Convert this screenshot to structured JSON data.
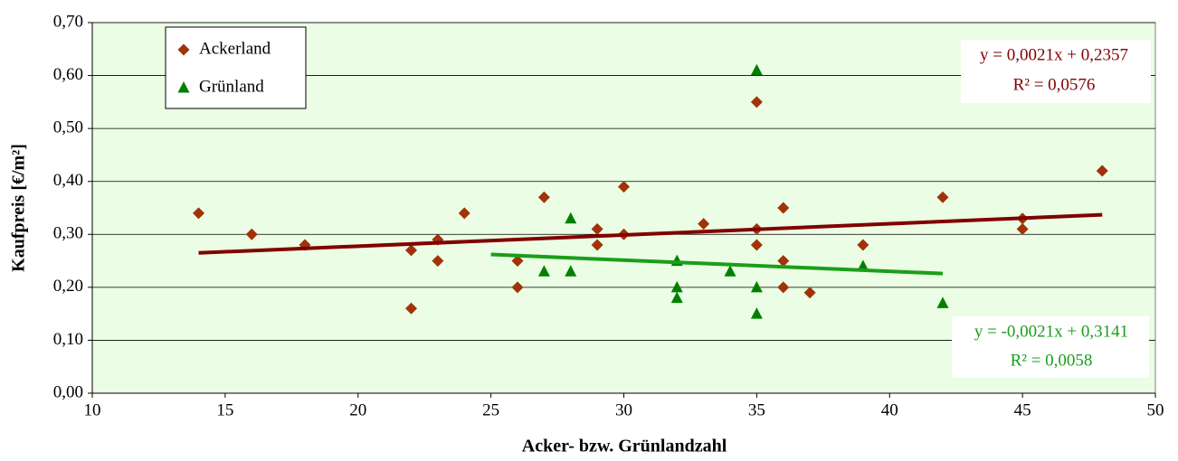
{
  "chart_data": {
    "type": "scatter",
    "x_label": "Acker- bzw. Grünlandzahl",
    "y_label": "Kaufpreis [€/m²]",
    "xlim": [
      10,
      50
    ],
    "xticks": [
      10,
      15,
      20,
      25,
      30,
      35,
      40,
      45,
      50
    ],
    "ylim": [
      0,
      0.7
    ],
    "yticks": [
      {
        "value": 0,
        "label": "0,00"
      },
      {
        "value": 0.1,
        "label": "0,10"
      },
      {
        "value": 0.2,
        "label": "0,20"
      },
      {
        "value": 0.3,
        "label": "0,30"
      },
      {
        "value": 0.4,
        "label": "0,40"
      },
      {
        "value": 0.5,
        "label": "0,50"
      },
      {
        "value": 0.6,
        "label": "0,60"
      },
      {
        "value": 0.7,
        "label": "0,70"
      }
    ],
    "grid": true,
    "background": "#ebfde4",
    "legend": "upper left",
    "series": [
      {
        "name": "Ackerland",
        "color": "#a0330a",
        "marker": "diamond",
        "x": [
          14,
          16,
          18,
          22,
          22,
          23,
          23,
          24,
          26,
          26,
          27,
          29,
          29,
          30,
          30,
          33,
          35,
          35,
          35,
          36,
          36,
          36,
          37,
          39,
          42,
          45,
          45,
          48
        ],
        "values": [
          0.34,
          0.3,
          0.28,
          0.27,
          0.16,
          0.29,
          0.25,
          0.34,
          0.25,
          0.2,
          0.37,
          0.31,
          0.28,
          0.39,
          0.3,
          0.32,
          0.55,
          0.31,
          0.28,
          0.35,
          0.25,
          0.2,
          0.19,
          0.28,
          0.37,
          0.33,
          0.31,
          0.42
        ],
        "trendline": {
          "color": "#800000",
          "x": [
            14,
            48
          ],
          "values": [
            0.265,
            0.337
          ],
          "equation": "y = 0,0021x + 0,2357",
          "r2": "R² = 0,0576"
        }
      },
      {
        "name": "Grünland",
        "color": "#008000",
        "marker": "triangle",
        "x": [
          27,
          28,
          28,
          32,
          32,
          32,
          34,
          35,
          35,
          35,
          39,
          42
        ],
        "values": [
          0.23,
          0.33,
          0.23,
          0.25,
          0.2,
          0.18,
          0.23,
          0.61,
          0.2,
          0.15,
          0.24,
          0.17
        ],
        "trendline": {
          "color": "#1a9e1a",
          "x": [
            25,
            42
          ],
          "values": [
            0.262,
            0.226
          ],
          "equation": "y = -0,0021x + 0,3141",
          "r2": "R² = 0,0058"
        }
      }
    ]
  }
}
